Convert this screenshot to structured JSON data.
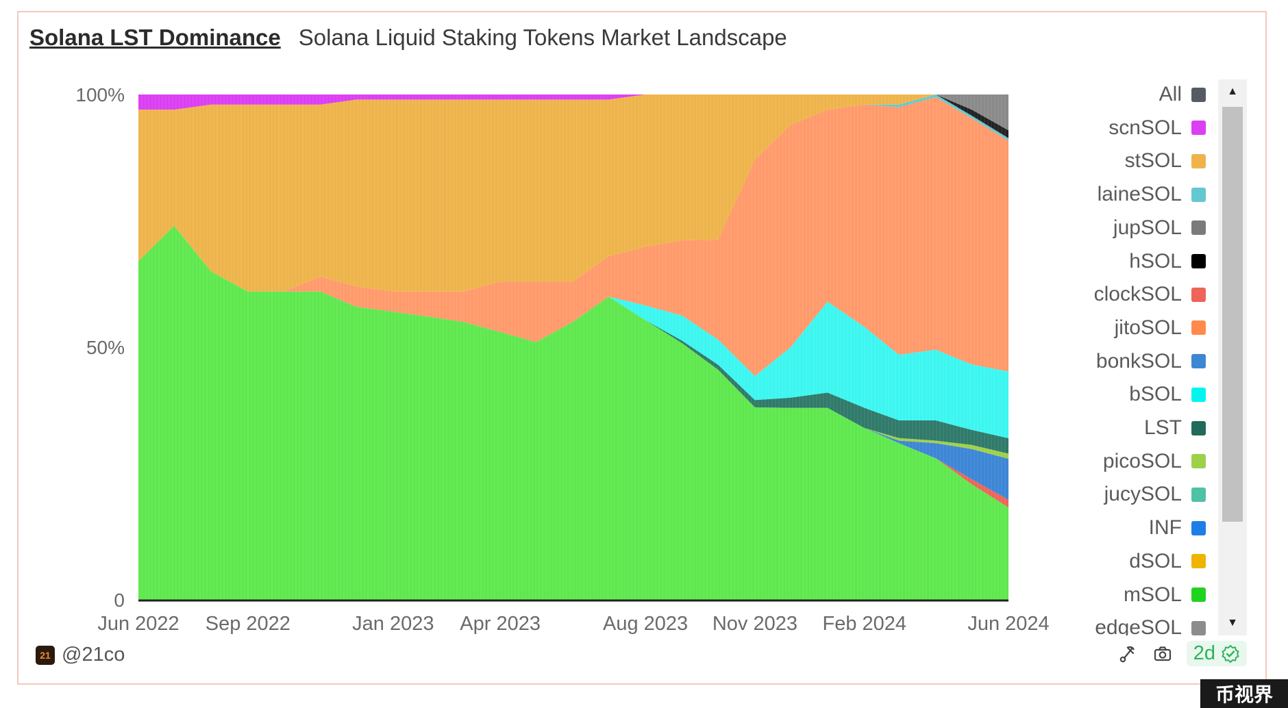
{
  "header": {
    "title": "Solana LST Dominance",
    "subtitle": "Solana Liquid Staking Tokens Market Landscape"
  },
  "chart_data": {
    "type": "area",
    "stacking": "percent",
    "x": [
      "2022-06-01",
      "2022-07-01",
      "2022-08-01",
      "2022-09-01",
      "2022-10-01",
      "2022-11-01",
      "2022-12-01",
      "2023-01-01",
      "2023-02-01",
      "2023-03-01",
      "2023-04-01",
      "2023-05-01",
      "2023-06-01",
      "2023-07-01",
      "2023-08-01",
      "2023-09-01",
      "2023-10-01",
      "2023-11-01",
      "2023-12-01",
      "2024-01-01",
      "2024-02-01",
      "2024-03-01",
      "2024-04-01",
      "2024-05-01",
      "2024-06-01"
    ],
    "x_ticks": [
      "Jun 2022",
      "Sep 2022",
      "Jan 2023",
      "Apr 2023",
      "Aug 2023",
      "Nov 2023",
      "Feb 2024",
      "Jun 2024"
    ],
    "y_ticks": [
      "0",
      "50%",
      "100%"
    ],
    "ylim": [
      0,
      100
    ],
    "series": [
      {
        "name": "mSOL",
        "color": "#5fe84e",
        "values": [
          67,
          74,
          65,
          61,
          61,
          61,
          58,
          57,
          56,
          55,
          53,
          51,
          55,
          60,
          57,
          51,
          46,
          40,
          38,
          38,
          34,
          31,
          28,
          23,
          18
        ]
      },
      {
        "name": "clockSOL",
        "color": "#ee6458",
        "values": [
          0,
          0,
          0,
          0,
          0,
          0,
          0,
          0,
          0,
          0,
          0,
          0,
          0,
          0,
          0,
          0,
          0,
          0,
          0,
          0,
          0,
          0,
          0,
          1,
          1.5
        ]
      },
      {
        "name": "bonkSOL",
        "color": "#3d86d6",
        "values": [
          0,
          0,
          0,
          0,
          0,
          0,
          0,
          0,
          0,
          0,
          0,
          0,
          0,
          0,
          0,
          0,
          0,
          0,
          0,
          0,
          0,
          0.5,
          3,
          6,
          8
        ]
      },
      {
        "name": "picoSOL",
        "color": "#9fd04a",
        "values": [
          0,
          0,
          0,
          0,
          0,
          0,
          0,
          0,
          0,
          0,
          0,
          0,
          0,
          0,
          0,
          0,
          0,
          0,
          0,
          0,
          0,
          0.5,
          0.5,
          0.8,
          1
        ]
      },
      {
        "name": "LST",
        "color": "#2f7a6a",
        "values": [
          0,
          0,
          0,
          0,
          0,
          0,
          0,
          0,
          0,
          0,
          0,
          0,
          0,
          0,
          0,
          0.5,
          1,
          1.5,
          2,
          3,
          4,
          3.5,
          4,
          3,
          3
        ]
      },
      {
        "name": "bSOL",
        "color": "#3cf6f0",
        "values": [
          0,
          0,
          0,
          0,
          0,
          0,
          0,
          0,
          0,
          0,
          0,
          0,
          0,
          0,
          3,
          5,
          5,
          5,
          10,
          18,
          16,
          13,
          14,
          13,
          13
        ]
      },
      {
        "name": "jitoSOL",
        "color": "#ff9a6b",
        "values": [
          0,
          0,
          0,
          0,
          0,
          3,
          4,
          4,
          5,
          6,
          10,
          12,
          8,
          8,
          12,
          15,
          20,
          45,
          44,
          38,
          44,
          49,
          50,
          49,
          45
        ]
      },
      {
        "name": "laineSOL",
        "color": "#64c8d0",
        "values": [
          0,
          0,
          0,
          0,
          0,
          0,
          0,
          0,
          0,
          0,
          0,
          0,
          0,
          0,
          0,
          0,
          0,
          0,
          0,
          0,
          0,
          0.5,
          0.5,
          0.5,
          0.5
        ]
      },
      {
        "name": "hSOL",
        "color": "#222222",
        "values": [
          0,
          0,
          0,
          0,
          0,
          0,
          0,
          0,
          0,
          0,
          0,
          0,
          0,
          0,
          0,
          0,
          0,
          0,
          0,
          0,
          0,
          0,
          0,
          1.2,
          1.5
        ]
      },
      {
        "name": "jupSOL",
        "color": "#8a8a8a",
        "values": [
          0,
          0,
          0,
          0,
          0,
          0,
          0,
          0,
          0,
          0,
          0,
          0,
          0,
          0,
          0,
          0,
          0,
          0,
          0,
          0,
          0,
          0,
          0,
          3,
          7
        ]
      },
      {
        "name": "stSOL",
        "color": "#eeb44b",
        "values": [
          30,
          23,
          33,
          37,
          37,
          34,
          37,
          38,
          38,
          38,
          36,
          36,
          36,
          31,
          31,
          29,
          29,
          13.5,
          6,
          3,
          2,
          2,
          0,
          0,
          0
        ]
      },
      {
        "name": "scnSOL",
        "color": "#db3ef3",
        "values": [
          3,
          3,
          2,
          2,
          2,
          2,
          1,
          1,
          1,
          1,
          1,
          1,
          1,
          1,
          0,
          0,
          0,
          0,
          0,
          0,
          0,
          0,
          0,
          0,
          0
        ]
      }
    ],
    "legend": {
      "placement": "right",
      "entries": [
        {
          "name": "All",
          "color": "#555b61"
        },
        {
          "name": "scnSOL",
          "color": "#db3ef3"
        },
        {
          "name": "stSOL",
          "color": "#eeb44b"
        },
        {
          "name": "laineSOL",
          "color": "#64c8d0"
        },
        {
          "name": "jupSOL",
          "color": "#7b7b7b"
        },
        {
          "name": "hSOL",
          "color": "#000000"
        },
        {
          "name": "clockSOL",
          "color": "#ee6458"
        },
        {
          "name": "jitoSOL",
          "color": "#ff8a4c"
        },
        {
          "name": "bonkSOL",
          "color": "#3d86d6"
        },
        {
          "name": "bSOL",
          "color": "#00f5f0"
        },
        {
          "name": "LST",
          "color": "#226a5a"
        },
        {
          "name": "picoSOL",
          "color": "#9fd04a"
        },
        {
          "name": "jucySOL",
          "color": "#4fc1a5"
        },
        {
          "name": "INF",
          "color": "#1d7fe6"
        },
        {
          "name": "dSOL",
          "color": "#efb400"
        },
        {
          "name": "mSOL",
          "color": "#21d321"
        },
        {
          "name": "edgeSOL",
          "color": "#8c8c8c"
        }
      ]
    },
    "grid": false
  },
  "footer": {
    "handle": "@21co",
    "logo_text": "21",
    "freshness": "2d"
  },
  "watermark": "币视界"
}
